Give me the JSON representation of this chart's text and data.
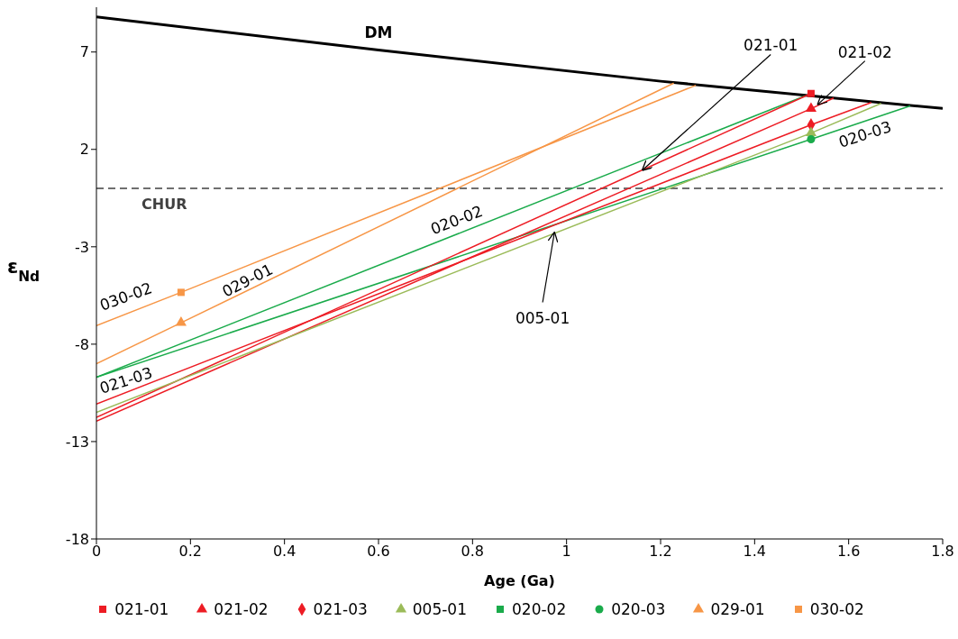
{
  "chart_data": {
    "type": "line",
    "xlabel": "Age (Ga)",
    "ylabel": "ε$_{Nd}$",
    "xlim": [
      0,
      1.8
    ],
    "ylim": [
      -18,
      9.3
    ],
    "xticks": [
      0,
      0.2,
      0.4,
      0.6,
      0.8,
      1,
      1.2,
      1.4,
      1.6,
      1.8
    ],
    "yticks": [
      -18,
      -13,
      -8,
      -3,
      2,
      7
    ],
    "grid": false,
    "legend": "bottom",
    "line_style": "solid",
    "series": [
      {
        "name": "DM",
        "color": "#000000",
        "x": [
          0,
          0.6,
          1.2,
          1.8
        ],
        "values": [
          8.8,
          7.1,
          5.5,
          4.1
        ]
      },
      {
        "color": "#f79646",
        "x": [
          0,
          0.18,
          1.275
        ],
        "values": [
          -7.05,
          -5.34,
          5.29
        ]
      },
      {
        "color": "#f79646",
        "x": [
          0,
          0.18,
          1.228
        ],
        "values": [
          -9.0,
          -6.9,
          5.4
        ]
      },
      {
        "color": "#1aab4b",
        "x": [
          0,
          1.507
        ],
        "values": [
          -9.7,
          4.74
        ]
      },
      {
        "color": "#1aab4b",
        "x": [
          0,
          1.52,
          1.731
        ],
        "values": [
          -9.7,
          2.52,
          4.23
        ]
      },
      {
        "color": "#ed1c24",
        "x": [
          0,
          1.52
        ],
        "values": [
          -11.76,
          4.87
        ]
      },
      {
        "color": "#ed1c24",
        "x": [
          0,
          1.52,
          1.568
        ],
        "values": [
          -11.95,
          4.09,
          4.64
        ]
      },
      {
        "color": "#ed1c24",
        "x": [
          0,
          1.52,
          1.648
        ],
        "values": [
          -11.07,
          3.26,
          4.41
        ]
      },
      {
        "color": "#9bbb59",
        "x": [
          0,
          1.52,
          1.669
        ],
        "values": [
          -11.5,
          2.84,
          4.36
        ]
      },
      {
        "type": "scatter",
        "name": "021-01",
        "color": "#ed1c24",
        "marker": "square",
        "x": [
          1.52
        ],
        "values": [
          4.87
        ]
      },
      {
        "type": "scatter",
        "name": "021-02",
        "color": "#ed1c24",
        "marker": "triangle",
        "x": [
          1.52
        ],
        "values": [
          4.09
        ]
      },
      {
        "type": "scatter",
        "name": "021-03",
        "color": "#ed1c24",
        "marker": "diamond",
        "x": [
          1.52
        ],
        "values": [
          3.26
        ]
      },
      {
        "type": "scatter",
        "name": "005-01",
        "color": "#9bbb59",
        "marker": "triangle",
        "x": [
          1.52
        ],
        "values": [
          2.84
        ]
      },
      {
        "type": "scatter",
        "name": "020-02",
        "color": "#1aab4b",
        "marker": "square"
      },
      {
        "type": "scatter",
        "name": "020-03",
        "color": "#1aab4b",
        "marker": "circle",
        "x": [
          1.52
        ],
        "values": [
          2.52
        ]
      },
      {
        "type": "scatter",
        "name": "029-01",
        "color": "#f79646",
        "marker": "triangle",
        "x": [
          0.18
        ],
        "values": [
          -6.9
        ]
      },
      {
        "type": "scatter",
        "name": "030-02",
        "color": "#f79646",
        "marker": "square",
        "x": [
          0.18
        ],
        "values": [
          -5.34
        ]
      }
    ],
    "ref_lines": [
      {
        "axis": "y",
        "value": 0,
        "label": "CHUR",
        "color": "#404040",
        "line_style": "dashed"
      }
    ],
    "annotations": [
      "030-02",
      "029-01",
      "020-02",
      "021-03",
      "020-03",
      {
        "text": "021-01",
        "x": 1.162,
        "y": 0.95
      },
      {
        "text": "021-02",
        "x": 1.535,
        "y": 4.32
      },
      {
        "text": "005-01",
        "x": 0.974,
        "y": -2.29
      }
    ]
  }
}
